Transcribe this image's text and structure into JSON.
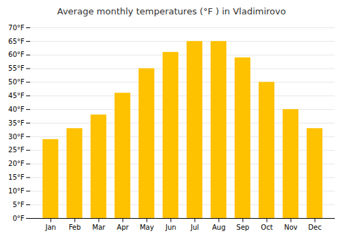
{
  "chart_data": {
    "type": "bar",
    "title": "Average monthly temperatures (°F ) in Vladimirovo",
    "categories": [
      "Jan",
      "Feb",
      "Mar",
      "Apr",
      "May",
      "Jun",
      "Jul",
      "Aug",
      "Sep",
      "Oct",
      "Nov",
      "Dec"
    ],
    "values": [
      29,
      33,
      38,
      46,
      55,
      61,
      65,
      65,
      59,
      50,
      40,
      33
    ],
    "color": "#FFC200",
    "ylim": [
      0,
      70
    ],
    "yticks": [
      {
        "value": 0,
        "label": "0°F"
      },
      {
        "value": 5,
        "label": "5°F"
      },
      {
        "value": 10,
        "label": "10°F"
      },
      {
        "value": 15,
        "label": "15°F"
      },
      {
        "value": 20,
        "label": "20°F"
      },
      {
        "value": 25,
        "label": "25°F"
      },
      {
        "value": 30,
        "label": "30°F"
      },
      {
        "value": 35,
        "label": "35°F"
      },
      {
        "value": 40,
        "label": "40°F"
      },
      {
        "value": 45,
        "label": "45°F"
      },
      {
        "value": 50,
        "label": "50°F"
      },
      {
        "value": 55,
        "label": "55°F"
      },
      {
        "value": 60,
        "label": "60°F"
      },
      {
        "value": 65,
        "label": "65°F"
      },
      {
        "value": 70,
        "label": "70°F"
      }
    ],
    "grid": true
  }
}
